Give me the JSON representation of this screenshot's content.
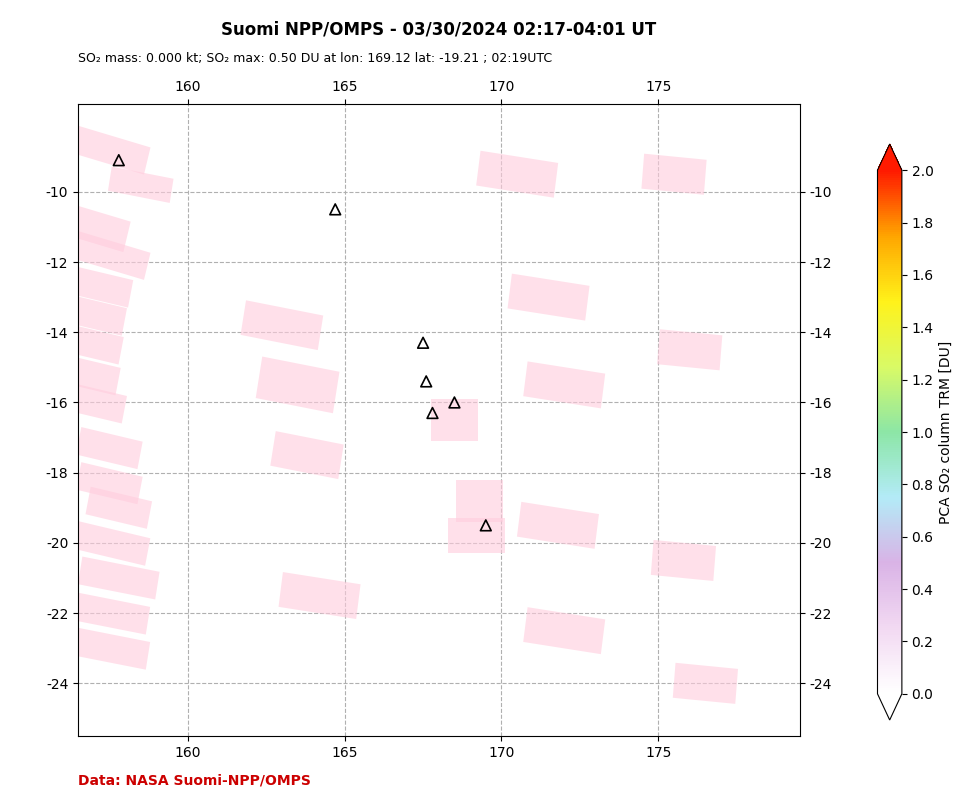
{
  "chart_data": {
    "type": "scatter",
    "title": "Suomi NPP/OMPS - 03/30/2024 02:17-04:01 UT",
    "subtitle": "SO₂ mass: 0.000 kt; SO₂ max: 0.50 DU at lon: 169.12 lat: -19.21 ; 02:19UTC",
    "annotations": [
      {
        "text": "Data: NASA Suomi-NPP/OMPS",
        "color": "#cc0000"
      }
    ],
    "xlim": [
      156.5,
      179.5
    ],
    "ylim": [
      -25.5,
      -7.5
    ],
    "xticks": [
      160,
      165,
      170,
      175
    ],
    "yticks": [
      -10,
      -12,
      -14,
      -16,
      -18,
      -20,
      -22,
      -24
    ],
    "grid": true,
    "x": [
      157.8,
      164.7,
      167.5,
      167.6,
      167.8,
      168.5,
      169.5
    ],
    "values": [
      -9.1,
      -10.5,
      -14.3,
      -15.4,
      -16.3,
      -16.0,
      -19.5
    ],
    "marker": "triangle",
    "color": "#000000",
    "so2_patch_color": "#ffccdd",
    "so2_patches": [
      {
        "lon": 157.5,
        "lat": -8.8,
        "w": 2.5,
        "h": 0.8,
        "angle": -15
      },
      {
        "lon": 158.5,
        "lat": -9.8,
        "w": 2.0,
        "h": 0.7,
        "angle": -10
      },
      {
        "lon": 157.0,
        "lat": -11.0,
        "w": 2.2,
        "h": 0.9,
        "angle": -15
      },
      {
        "lon": 157.5,
        "lat": -11.8,
        "w": 2.5,
        "h": 0.8,
        "angle": -15
      },
      {
        "lon": 157.2,
        "lat": -12.7,
        "w": 2.0,
        "h": 0.8,
        "angle": -12
      },
      {
        "lon": 157.0,
        "lat": -13.5,
        "w": 2.0,
        "h": 0.8,
        "angle": -12
      },
      {
        "lon": 156.8,
        "lat": -14.3,
        "w": 2.2,
        "h": 0.8,
        "angle": -12
      },
      {
        "lon": 156.8,
        "lat": -15.2,
        "w": 2.0,
        "h": 0.8,
        "angle": -12
      },
      {
        "lon": 157.0,
        "lat": -16.0,
        "w": 2.0,
        "h": 0.8,
        "angle": -12
      },
      {
        "lon": 157.5,
        "lat": -17.3,
        "w": 2.0,
        "h": 0.8,
        "angle": -12
      },
      {
        "lon": 157.5,
        "lat": -18.3,
        "w": 2.0,
        "h": 0.8,
        "angle": -12
      },
      {
        "lon": 157.8,
        "lat": -19.0,
        "w": 2.0,
        "h": 0.8,
        "angle": -12
      },
      {
        "lon": 157.5,
        "lat": -20.0,
        "w": 2.5,
        "h": 0.8,
        "angle": -12
      },
      {
        "lon": 157.8,
        "lat": -21.0,
        "w": 2.5,
        "h": 0.8,
        "angle": -10
      },
      {
        "lon": 157.5,
        "lat": -22.0,
        "w": 2.5,
        "h": 0.8,
        "angle": -10
      },
      {
        "lon": 157.5,
        "lat": -23.0,
        "w": 2.5,
        "h": 0.8,
        "angle": -10
      },
      {
        "lon": 163.0,
        "lat": -13.8,
        "w": 2.5,
        "h": 1.0,
        "angle": -10
      },
      {
        "lon": 163.5,
        "lat": -15.5,
        "w": 2.5,
        "h": 1.2,
        "angle": -10
      },
      {
        "lon": 163.8,
        "lat": -17.5,
        "w": 2.2,
        "h": 1.0,
        "angle": -10
      },
      {
        "lon": 164.2,
        "lat": -21.5,
        "w": 2.5,
        "h": 1.0,
        "angle": -8
      },
      {
        "lon": 168.5,
        "lat": -16.5,
        "w": 1.5,
        "h": 1.2,
        "angle": 0
      },
      {
        "lon": 169.3,
        "lat": -18.8,
        "w": 1.5,
        "h": 1.2,
        "angle": 0
      },
      {
        "lon": 169.2,
        "lat": -19.8,
        "w": 1.8,
        "h": 1.0,
        "angle": 0
      },
      {
        "lon": 170.5,
        "lat": -9.5,
        "w": 2.5,
        "h": 1.0,
        "angle": -8
      },
      {
        "lon": 171.5,
        "lat": -13.0,
        "w": 2.5,
        "h": 1.0,
        "angle": -8
      },
      {
        "lon": 172.0,
        "lat": -15.5,
        "w": 2.5,
        "h": 1.0,
        "angle": -8
      },
      {
        "lon": 171.8,
        "lat": -19.5,
        "w": 2.5,
        "h": 1.0,
        "angle": -8
      },
      {
        "lon": 172.0,
        "lat": -22.5,
        "w": 2.5,
        "h": 1.0,
        "angle": -8
      },
      {
        "lon": 175.5,
        "lat": -9.5,
        "w": 2.0,
        "h": 1.0,
        "angle": -5
      },
      {
        "lon": 176.0,
        "lat": -14.5,
        "w": 2.0,
        "h": 1.0,
        "angle": -5
      },
      {
        "lon": 175.8,
        "lat": -20.5,
        "w": 2.0,
        "h": 1.0,
        "angle": -5
      },
      {
        "lon": 176.5,
        "lat": -24.0,
        "w": 2.0,
        "h": 1.0,
        "angle": -5
      }
    ],
    "colorbar": {
      "label": "PCA SO₂ column TRM [DU]",
      "range": [
        0.0,
        2.0
      ],
      "ticks": [
        {
          "value": 0.0,
          "label": "0.0"
        },
        0.2,
        0.4,
        0.6,
        0.8,
        {
          "value": 1.0,
          "label": "1.0"
        },
        1.2,
        1.4,
        1.6,
        1.8,
        {
          "value": 2.0,
          "label": "2.0"
        }
      ],
      "colors": [
        "#ffffff",
        "#f2d9f2",
        "#d9b3e6",
        "#b3ebf7",
        "#8ce6a6",
        "#d9fa66",
        "#fff21a",
        "#ffa600",
        "#ff1a00"
      ]
    }
  }
}
